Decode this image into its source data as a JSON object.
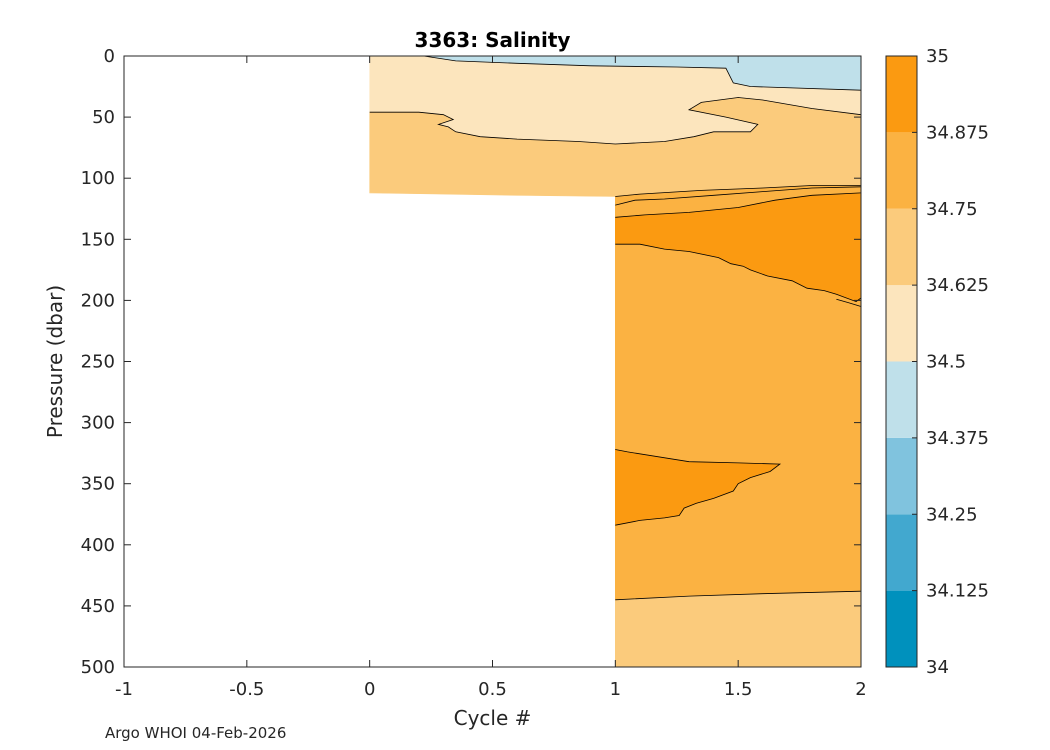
{
  "chart_data": {
    "type": "contour",
    "title": "3363:  Salinity",
    "xlabel": "Cycle #",
    "ylabel": "Pressure (dbar)",
    "xlim": [
      -1,
      2
    ],
    "ylim": [
      0,
      500
    ],
    "y_reversed": true,
    "x_ticks": [
      -1,
      -0.5,
      0,
      0.5,
      1,
      1.5,
      2
    ],
    "x_tick_labels": [
      "-1",
      "-0.5",
      "0",
      "0.5",
      "1",
      "1.5",
      "2"
    ],
    "y_ticks": [
      0,
      50,
      100,
      150,
      200,
      250,
      300,
      350,
      400,
      450,
      500
    ],
    "y_tick_labels": [
      "0",
      "50",
      "100",
      "150",
      "200",
      "250",
      "300",
      "350",
      "400",
      "450",
      "500"
    ],
    "colorbar": {
      "levels": [
        34,
        34.125,
        34.25,
        34.375,
        34.5,
        34.625,
        34.75,
        34.875,
        35
      ],
      "labels": [
        "34",
        "34.125",
        "34.25",
        "34.375",
        "34.5",
        "34.625",
        "34.75",
        "34.875",
        "35"
      ],
      "colors": [
        "#0091bd",
        "#42a8cf",
        "#80c3de",
        "#bfe0ea",
        "#fce5bd",
        "#fbcb7c",
        "#fbb242",
        "#fb9a11"
      ]
    },
    "profiles": [
      {
        "cycle": 0,
        "max_pressure": 112
      },
      {
        "cycle": 1,
        "max_pressure": 500
      },
      {
        "cycle": 2,
        "max_pressure": 500
      }
    ],
    "regions": [
      {
        "name": "fresh-surface-layer",
        "level": 34.375,
        "color": "#bfe0ea",
        "points": [
          [
            0.22,
            0
          ],
          [
            2,
            0
          ],
          [
            2,
            28
          ],
          [
            1.55,
            25
          ],
          [
            1.48,
            22
          ],
          [
            1.45,
            10
          ],
          [
            1.25,
            9
          ],
          [
            0.9,
            8
          ],
          [
            0.6,
            6
          ],
          [
            0.35,
            4
          ],
          [
            0.22,
            0
          ]
        ]
      },
      {
        "name": "upper-layer",
        "level": 34.5,
        "color": "#fce5bd",
        "points": [
          [
            0,
            0
          ],
          [
            0.22,
            0
          ],
          [
            0.35,
            4
          ],
          [
            0.6,
            6
          ],
          [
            0.9,
            8
          ],
          [
            1.25,
            9
          ],
          [
            1.45,
            10
          ],
          [
            1.48,
            22
          ],
          [
            1.55,
            25
          ],
          [
            2,
            28
          ],
          [
            2,
            48
          ],
          [
            1.8,
            43
          ],
          [
            1.6,
            36
          ],
          [
            1.5,
            34
          ],
          [
            1.35,
            38
          ],
          [
            1.3,
            44
          ],
          [
            1.45,
            50
          ],
          [
            1.58,
            56
          ],
          [
            1.55,
            62
          ],
          [
            1.4,
            62
          ],
          [
            1.32,
            66
          ],
          [
            1.2,
            70
          ],
          [
            1.0,
            72
          ],
          [
            0.85,
            70
          ],
          [
            0.6,
            68
          ],
          [
            0.45,
            66
          ],
          [
            0.35,
            62
          ],
          [
            0.32,
            58
          ],
          [
            0.28,
            56
          ],
          [
            0.34,
            52
          ],
          [
            0.3,
            48
          ],
          [
            0.2,
            46
          ],
          [
            0,
            46
          ]
        ]
      },
      {
        "name": "mid-layer-1",
        "level": 34.625,
        "color": "#fbcb7c",
        "points": [
          [
            0,
            46
          ],
          [
            0.2,
            46
          ],
          [
            0.3,
            48
          ],
          [
            0.34,
            52
          ],
          [
            0.28,
            56
          ],
          [
            0.32,
            58
          ],
          [
            0.35,
            62
          ],
          [
            0.45,
            66
          ],
          [
            0.6,
            68
          ],
          [
            0.85,
            70
          ],
          [
            1.0,
            72
          ],
          [
            1.2,
            70
          ],
          [
            1.32,
            66
          ],
          [
            1.4,
            62
          ],
          [
            1.55,
            62
          ],
          [
            1.58,
            56
          ],
          [
            1.45,
            50
          ],
          [
            1.3,
            44
          ],
          [
            1.35,
            38
          ],
          [
            1.5,
            34
          ],
          [
            1.6,
            36
          ],
          [
            1.8,
            43
          ],
          [
            2,
            48
          ],
          [
            2,
            106
          ],
          [
            1.8,
            106
          ],
          [
            1.6,
            108
          ],
          [
            1.35,
            110
          ],
          [
            1.1,
            113
          ],
          [
            1.0,
            115
          ],
          [
            0.6,
            114
          ],
          [
            0.3,
            113
          ],
          [
            0,
            112
          ]
        ]
      },
      {
        "name": "mid-layer-2",
        "level": 34.75,
        "color": "#fbb242",
        "points": [
          [
            1,
            115
          ],
          [
            1.1,
            113
          ],
          [
            1.35,
            110
          ],
          [
            1.6,
            108
          ],
          [
            1.8,
            106
          ],
          [
            2,
            106
          ],
          [
            2,
            500
          ],
          [
            1,
            500
          ]
        ]
      },
      {
        "name": "salty-core",
        "level": 34.875,
        "color": "#fb9a11",
        "points": [
          [
            1,
            132
          ],
          [
            1.12,
            130
          ],
          [
            1.3,
            128
          ],
          [
            1.5,
            124
          ],
          [
            1.65,
            118
          ],
          [
            1.8,
            114
          ],
          [
            2,
            112
          ],
          [
            2,
            198
          ],
          [
            1.98,
            201
          ],
          [
            1.9,
            195
          ],
          [
            1.85,
            192
          ],
          [
            1.78,
            190
          ],
          [
            1.72,
            184
          ],
          [
            1.62,
            180
          ],
          [
            1.55,
            175
          ],
          [
            1.52,
            172
          ],
          [
            1.47,
            170
          ],
          [
            1.42,
            165
          ],
          [
            1.3,
            160
          ],
          [
            1.2,
            158
          ],
          [
            1.1,
            154
          ],
          [
            1.0,
            154
          ]
        ]
      },
      {
        "name": "salty-lens",
        "level": 34.875,
        "color": "#fb9a11",
        "points": [
          [
            1,
            322
          ],
          [
            1.05,
            324
          ],
          [
            1.3,
            332
          ],
          [
            1.5,
            333
          ],
          [
            1.67,
            334
          ],
          [
            1.63,
            340
          ],
          [
            1.55,
            345
          ],
          [
            1.5,
            350
          ],
          [
            1.48,
            356
          ],
          [
            1.4,
            362
          ],
          [
            1.33,
            366
          ],
          [
            1.28,
            370
          ],
          [
            1.26,
            376
          ],
          [
            1.2,
            378
          ],
          [
            1.1,
            380
          ],
          [
            1.0,
            384
          ]
        ]
      },
      {
        "name": "deep-layer",
        "level": 34.625,
        "color": "#fbcb7c",
        "points": [
          [
            1,
            445
          ],
          [
            1.3,
            442
          ],
          [
            1.6,
            440
          ],
          [
            2,
            438
          ],
          [
            2,
            500
          ],
          [
            1,
            500
          ]
        ]
      }
    ],
    "contour_lines": [
      [
        [
          0.22,
          0
        ],
        [
          0.35,
          4
        ],
        [
          0.6,
          6
        ],
        [
          0.9,
          8
        ],
        [
          1.25,
          9
        ],
        [
          1.45,
          10
        ],
        [
          1.48,
          22
        ],
        [
          1.55,
          25
        ],
        [
          2,
          28
        ]
      ],
      [
        [
          0,
          46
        ],
        [
          0.2,
          46
        ],
        [
          0.3,
          48
        ],
        [
          0.34,
          52
        ],
        [
          0.28,
          56
        ],
        [
          0.32,
          58
        ],
        [
          0.35,
          62
        ],
        [
          0.45,
          66
        ],
        [
          0.6,
          68
        ],
        [
          0.85,
          70
        ],
        [
          1.0,
          72
        ],
        [
          1.2,
          70
        ],
        [
          1.32,
          66
        ],
        [
          1.4,
          62
        ],
        [
          1.55,
          62
        ],
        [
          1.58,
          56
        ],
        [
          1.45,
          50
        ],
        [
          1.3,
          44
        ],
        [
          1.35,
          38
        ],
        [
          1.5,
          34
        ],
        [
          1.6,
          36
        ],
        [
          1.8,
          43
        ],
        [
          2,
          48
        ]
      ],
      [
        [
          1,
          115
        ],
        [
          1.1,
          113
        ],
        [
          1.35,
          110
        ],
        [
          1.6,
          108
        ],
        [
          1.8,
          106
        ],
        [
          2,
          106
        ]
      ],
      [
        [
          1,
          122
        ],
        [
          1.08,
          118
        ],
        [
          1.2,
          117
        ],
        [
          1.4,
          114
        ],
        [
          1.6,
          111
        ],
        [
          1.8,
          108
        ],
        [
          2,
          107
        ]
      ],
      [
        [
          1,
          132
        ],
        [
          1.12,
          130
        ],
        [
          1.3,
          128
        ],
        [
          1.5,
          124
        ],
        [
          1.65,
          118
        ],
        [
          1.8,
          114
        ],
        [
          2,
          112
        ]
      ],
      [
        [
          1,
          154
        ],
        [
          1.1,
          154
        ],
        [
          1.2,
          158
        ],
        [
          1.3,
          160
        ],
        [
          1.42,
          165
        ],
        [
          1.47,
          170
        ],
        [
          1.52,
          172
        ],
        [
          1.55,
          175
        ],
        [
          1.62,
          180
        ],
        [
          1.72,
          184
        ],
        [
          1.78,
          190
        ],
        [
          1.85,
          192
        ],
        [
          1.9,
          195
        ],
        [
          1.98,
          201
        ],
        [
          2,
          198
        ]
      ],
      [
        [
          1.9,
          199
        ],
        [
          1.95,
          202
        ],
        [
          2,
          205
        ]
      ],
      [
        [
          1,
          322
        ],
        [
          1.05,
          324
        ],
        [
          1.3,
          332
        ],
        [
          1.5,
          333
        ],
        [
          1.67,
          334
        ],
        [
          1.63,
          340
        ],
        [
          1.55,
          345
        ],
        [
          1.5,
          350
        ],
        [
          1.48,
          356
        ],
        [
          1.4,
          362
        ],
        [
          1.33,
          366
        ],
        [
          1.28,
          370
        ],
        [
          1.26,
          376
        ],
        [
          1.2,
          378
        ],
        [
          1.1,
          380
        ],
        [
          1.0,
          384
        ]
      ],
      [
        [
          1,
          445
        ],
        [
          1.3,
          442
        ],
        [
          1.6,
          440
        ],
        [
          2,
          438
        ]
      ]
    ]
  },
  "footer": {
    "text": "Argo WHOI 04-Feb-2026"
  }
}
